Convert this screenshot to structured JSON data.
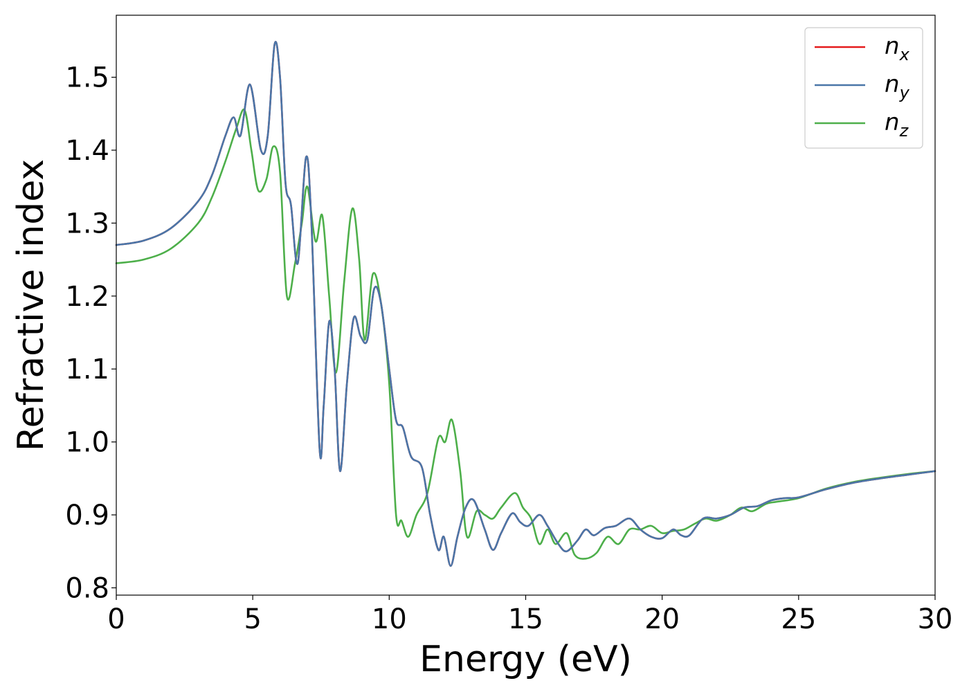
{
  "chart_data": {
    "type": "line",
    "title": "",
    "xlabel": "Energy (eV)",
    "ylabel": "Refractive index",
    "xlim": [
      0,
      30
    ],
    "ylim": [
      0.79,
      1.585
    ],
    "xticks": [
      0,
      5,
      10,
      15,
      20,
      25,
      30
    ],
    "yticks": [
      0.8,
      0.9,
      1.0,
      1.1,
      1.2,
      1.3,
      1.4,
      1.5
    ],
    "xtick_labels": [
      "0",
      "5",
      "10",
      "15",
      "20",
      "25",
      "30"
    ],
    "ytick_labels": [
      "0.8",
      "0.9",
      "1.0",
      "1.1",
      "1.2",
      "1.3",
      "1.4",
      "1.5"
    ],
    "grid": false,
    "legend_position": "top-right",
    "series": [
      {
        "name": "n_x",
        "legend_base": "n",
        "legend_sub": "x",
        "color": "#e41a1c",
        "x": [
          0,
          1,
          2,
          3,
          3.5,
          4,
          4.3,
          4.55,
          4.9,
          5.3,
          5.55,
          5.8,
          6.0,
          6.2,
          6.4,
          6.65,
          6.95,
          7.15,
          7.45,
          7.6,
          7.8,
          8.0,
          8.2,
          8.45,
          8.7,
          8.95,
          9.2,
          9.45,
          9.7,
          10.0,
          10.25,
          10.5,
          10.8,
          11.2,
          11.5,
          11.8,
          12.0,
          12.25,
          12.5,
          12.8,
          13.1,
          13.5,
          13.8,
          14.1,
          14.5,
          14.8,
          15.1,
          15.5,
          15.8,
          16.2,
          16.5,
          16.9,
          17.2,
          17.5,
          17.9,
          18.3,
          18.8,
          19.2,
          19.6,
          20.0,
          20.4,
          20.7,
          21.0,
          21.5,
          22.0,
          22.5,
          23.0,
          23.5,
          24.0,
          24.5,
          25.0,
          26.0,
          27.0,
          28.0,
          29.0,
          30.0
        ],
        "y": [
          1.27,
          1.276,
          1.293,
          1.33,
          1.365,
          1.42,
          1.445,
          1.42,
          1.49,
          1.4,
          1.42,
          1.545,
          1.5,
          1.355,
          1.325,
          1.245,
          1.39,
          1.3,
          0.99,
          1.05,
          1.165,
          1.1,
          0.96,
          1.08,
          1.17,
          1.145,
          1.14,
          1.21,
          1.19,
          1.1,
          1.03,
          1.02,
          0.98,
          0.965,
          0.9,
          0.852,
          0.87,
          0.83,
          0.87,
          0.91,
          0.92,
          0.88,
          0.852,
          0.875,
          0.902,
          0.89,
          0.885,
          0.9,
          0.885,
          0.86,
          0.85,
          0.865,
          0.88,
          0.872,
          0.882,
          0.885,
          0.895,
          0.88,
          0.87,
          0.868,
          0.88,
          0.872,
          0.872,
          0.895,
          0.895,
          0.9,
          0.91,
          0.912,
          0.92,
          0.923,
          0.924,
          0.935,
          0.944,
          0.95,
          0.955,
          0.96
        ]
      },
      {
        "name": "n_y",
        "legend_base": "n",
        "legend_sub": "y",
        "color": "#4a76a8",
        "x": [
          0,
          1,
          2,
          3,
          3.5,
          4,
          4.3,
          4.55,
          4.9,
          5.3,
          5.55,
          5.8,
          6.0,
          6.2,
          6.4,
          6.65,
          6.95,
          7.15,
          7.45,
          7.6,
          7.8,
          8.0,
          8.2,
          8.45,
          8.7,
          8.95,
          9.2,
          9.45,
          9.7,
          10.0,
          10.25,
          10.5,
          10.8,
          11.2,
          11.5,
          11.8,
          12.0,
          12.25,
          12.5,
          12.8,
          13.1,
          13.5,
          13.8,
          14.1,
          14.5,
          14.8,
          15.1,
          15.5,
          15.8,
          16.2,
          16.5,
          16.9,
          17.2,
          17.5,
          17.9,
          18.3,
          18.8,
          19.2,
          19.6,
          20.0,
          20.4,
          20.7,
          21.0,
          21.5,
          22.0,
          22.5,
          23.0,
          23.5,
          24.0,
          24.5,
          25.0,
          26.0,
          27.0,
          28.0,
          29.0,
          30.0
        ],
        "y": [
          1.27,
          1.276,
          1.293,
          1.33,
          1.365,
          1.42,
          1.445,
          1.42,
          1.49,
          1.4,
          1.42,
          1.545,
          1.5,
          1.355,
          1.325,
          1.245,
          1.39,
          1.3,
          0.99,
          1.05,
          1.165,
          1.1,
          0.96,
          1.08,
          1.17,
          1.145,
          1.14,
          1.21,
          1.19,
          1.1,
          1.03,
          1.02,
          0.98,
          0.965,
          0.9,
          0.852,
          0.87,
          0.83,
          0.87,
          0.91,
          0.92,
          0.88,
          0.852,
          0.875,
          0.902,
          0.89,
          0.885,
          0.9,
          0.885,
          0.86,
          0.85,
          0.865,
          0.88,
          0.872,
          0.882,
          0.885,
          0.895,
          0.88,
          0.87,
          0.868,
          0.88,
          0.872,
          0.872,
          0.895,
          0.895,
          0.9,
          0.91,
          0.912,
          0.92,
          0.923,
          0.924,
          0.935,
          0.944,
          0.95,
          0.955,
          0.96
        ]
      },
      {
        "name": "n_z",
        "legend_base": "n",
        "legend_sub": "z",
        "color": "#4daf4a",
        "x": [
          0,
          1,
          2,
          3,
          3.5,
          4,
          4.4,
          4.7,
          4.95,
          5.2,
          5.5,
          5.75,
          6.0,
          6.25,
          6.55,
          6.8,
          7.0,
          7.3,
          7.55,
          7.8,
          8.05,
          8.35,
          8.65,
          8.9,
          9.1,
          9.4,
          9.7,
          10.0,
          10.25,
          10.45,
          10.7,
          11.0,
          11.4,
          11.8,
          12.05,
          12.3,
          12.6,
          12.85,
          13.2,
          13.5,
          13.8,
          14.1,
          14.6,
          14.9,
          15.2,
          15.5,
          15.8,
          16.1,
          16.5,
          16.8,
          17.2,
          17.6,
          18.0,
          18.4,
          18.8,
          19.2,
          19.6,
          20.0,
          20.4,
          20.8,
          21.2,
          21.6,
          22.0,
          22.5,
          22.9,
          23.3,
          23.8,
          24.2,
          25.0,
          26.0,
          27.0,
          28.0,
          29.0,
          30.0
        ],
        "y": [
          1.245,
          1.25,
          1.265,
          1.3,
          1.335,
          1.385,
          1.43,
          1.455,
          1.4,
          1.345,
          1.36,
          1.405,
          1.37,
          1.2,
          1.245,
          1.3,
          1.35,
          1.275,
          1.31,
          1.2,
          1.095,
          1.22,
          1.32,
          1.25,
          1.14,
          1.23,
          1.19,
          1.08,
          0.9,
          0.892,
          0.87,
          0.9,
          0.93,
          1.005,
          1.0,
          1.03,
          0.96,
          0.87,
          0.905,
          0.9,
          0.895,
          0.91,
          0.93,
          0.91,
          0.895,
          0.86,
          0.88,
          0.86,
          0.875,
          0.845,
          0.84,
          0.848,
          0.87,
          0.86,
          0.88,
          0.88,
          0.885,
          0.875,
          0.878,
          0.88,
          0.888,
          0.895,
          0.892,
          0.9,
          0.91,
          0.905,
          0.915,
          0.918,
          0.923,
          0.936,
          0.945,
          0.951,
          0.956,
          0.96
        ]
      }
    ]
  }
}
